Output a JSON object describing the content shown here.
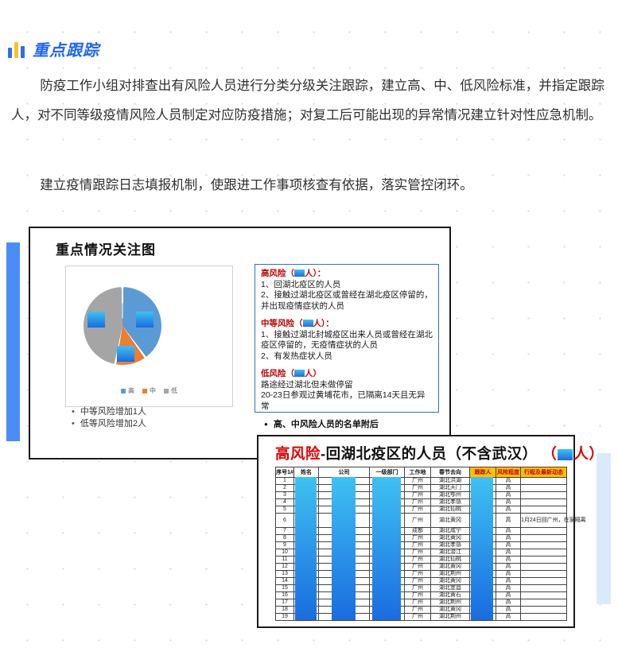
{
  "header": {
    "title": "重点跟踪"
  },
  "paragraphs": {
    "p1": "防疫工作小组对排查出有风险人员进行分类分级关注跟踪，建立高、中、低风险标准，并指定跟踪人，对不同等级疫情风险人员制定对应防疫措施；对复工后可能出现的异常情况建立针对性应急机制。",
    "p2": "建立疫情跟踪日志填报机制，使跟进工作事项核查有依据，落实管控闭环。"
  },
  "focus_card": {
    "title": "重点情况关注图",
    "bullets": [
      "中等风险增加1人",
      "低等风险增加2人"
    ],
    "risk_box": {
      "sections": [
        {
          "title": "高风险",
          "paren_open": "（",
          "paren_close": "人）：",
          "lines": [
            "1、回湖北疫区的人员",
            "2、接触过湖北疫区或曾经在湖北疫区停留的，并出现疫情症状的人员"
          ]
        },
        {
          "title": "中等风险",
          "paren_open": "（",
          "paren_close": "人）：",
          "lines": [
            "1、接触过湖北封城疫区出来人员或曾经在湖北疫区停留的，无疫情症状的人员",
            "2、有发热症状人员"
          ]
        },
        {
          "title": "低风险",
          "paren_open": "（",
          "paren_close": "人）",
          "lines": [
            "路途经过湖北但未做停留",
            "20-23日参观过黄埔花市，已隔离14天且无异常"
          ]
        }
      ]
    },
    "note": "高、中风险人员的名单附后"
  },
  "chart_data": {
    "type": "pie",
    "title": "重点情况关注图",
    "labels": [
      "高",
      "中",
      "低"
    ],
    "values_pct": [
      40,
      13,
      47
    ],
    "colors": [
      "#5B9BD5",
      "#ED7D31",
      "#A5A5A5"
    ],
    "legend_position": "bottom",
    "annotation": "各扇区数值被蓝色色块遮盖"
  },
  "roster": {
    "title_red": "高风险",
    "title_black": "-回湖北疫区的人员（不含武汉）",
    "title_paren_open": "（",
    "title_paren_close": "人）",
    "redaction_color_top": "#3ec1f2",
    "redaction_color_bottom": "#1a6ce0",
    "header_highlight_color": "#ffc000",
    "table": {
      "headers": [
        "序号1#",
        "姓名",
        "公司",
        "一级部门",
        "工作地",
        "春节去向",
        "跟踪人",
        "风险程度",
        "行程及最新动态"
      ],
      "redacted_columns": [
        "姓名",
        "公司",
        "一级部门",
        "跟踪人"
      ],
      "rows": [
        {
          "no": "1",
          "workplace": "广州",
          "destination": "湖北洪湖",
          "risk": "高",
          "note": ""
        },
        {
          "no": "2",
          "workplace": "广州",
          "destination": "湖北天门",
          "risk": "高",
          "note": ""
        },
        {
          "no": "3",
          "workplace": "广州",
          "destination": "湖北鄂州",
          "risk": "高",
          "note": ""
        },
        {
          "no": "4",
          "workplace": "广州",
          "destination": "湖北孝感",
          "risk": "高",
          "note": ""
        },
        {
          "no": "5",
          "workplace": "广州",
          "destination": "湖北仙桃",
          "risk": "高",
          "note": ""
        },
        {
          "no": "6",
          "workplace": "广州",
          "destination": "湖北黄冈",
          "risk": "高",
          "note": "1月24日回广州，在家隔离"
        },
        {
          "no": "7",
          "workplace": "成都",
          "destination": "湖北咸宁",
          "risk": "高",
          "note": ""
        },
        {
          "no": "8",
          "workplace": "广州",
          "destination": "湖北黄冈",
          "risk": "高",
          "note": ""
        },
        {
          "no": "9",
          "workplace": "广州",
          "destination": "湖北孝感",
          "risk": "高",
          "note": ""
        },
        {
          "no": "10",
          "workplace": "广州",
          "destination": "湖北潜江",
          "risk": "高",
          "note": ""
        },
        {
          "no": "11",
          "workplace": "广州",
          "destination": "湖北仙桃",
          "risk": "高",
          "note": ""
        },
        {
          "no": "12",
          "workplace": "广州",
          "destination": "湖北黄冈",
          "risk": "高",
          "note": ""
        },
        {
          "no": "13",
          "workplace": "广州",
          "destination": "湖北荆州",
          "risk": "高",
          "note": ""
        },
        {
          "no": "14",
          "workplace": "广州",
          "destination": "湖北黄冈",
          "risk": "高",
          "note": ""
        },
        {
          "no": "15",
          "workplace": "广州",
          "destination": "湖北宜昌",
          "risk": "高",
          "note": ""
        },
        {
          "no": "16",
          "workplace": "广州",
          "destination": "湖北黄石",
          "risk": "高",
          "note": ""
        },
        {
          "no": "17",
          "workplace": "广州",
          "destination": "湖北荆州",
          "risk": "高",
          "note": ""
        },
        {
          "no": "18",
          "workplace": "广州",
          "destination": "湖北黄冈",
          "risk": "高",
          "note": ""
        },
        {
          "no": "19",
          "workplace": "广州",
          "destination": "湖北荆州",
          "risk": "高",
          "note": ""
        }
      ]
    }
  }
}
